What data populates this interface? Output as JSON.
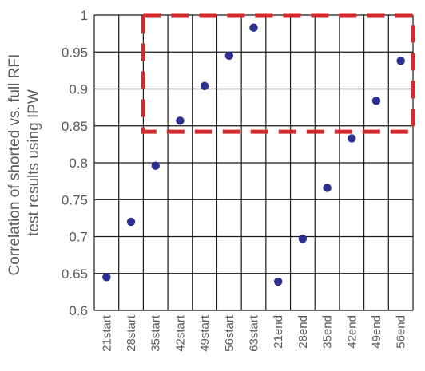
{
  "chart_data": {
    "type": "scatter",
    "title": "",
    "xlabel": "",
    "ylabel_lines": [
      "Correlation of shorted vs. full RFI",
      "test results using IPW"
    ],
    "categories": [
      "21start",
      "28start",
      "35start",
      "42start",
      "49start",
      "56start",
      "63start",
      "21end",
      "28end",
      "35end",
      "42end",
      "49end",
      "56end"
    ],
    "values": [
      0.645,
      0.72,
      0.796,
      0.857,
      0.904,
      0.945,
      0.983,
      0.639,
      0.697,
      0.766,
      0.833,
      0.884,
      0.938
    ],
    "ylim": [
      0.6,
      1.0
    ],
    "yticks": [
      "0.6",
      "0.65",
      "0.7",
      "0.75",
      "0.8",
      "0.85",
      "0.9",
      "0.95",
      "1"
    ],
    "grid": true,
    "marker_color": "#2b2f8f",
    "grid_color": "#1a1a1a",
    "highlight_box": {
      "from_category": "35start",
      "to_category": "56end",
      "y_from": 0.842,
      "y_to": 1.0,
      "color": "#d42a2e",
      "style": "dashed"
    }
  }
}
